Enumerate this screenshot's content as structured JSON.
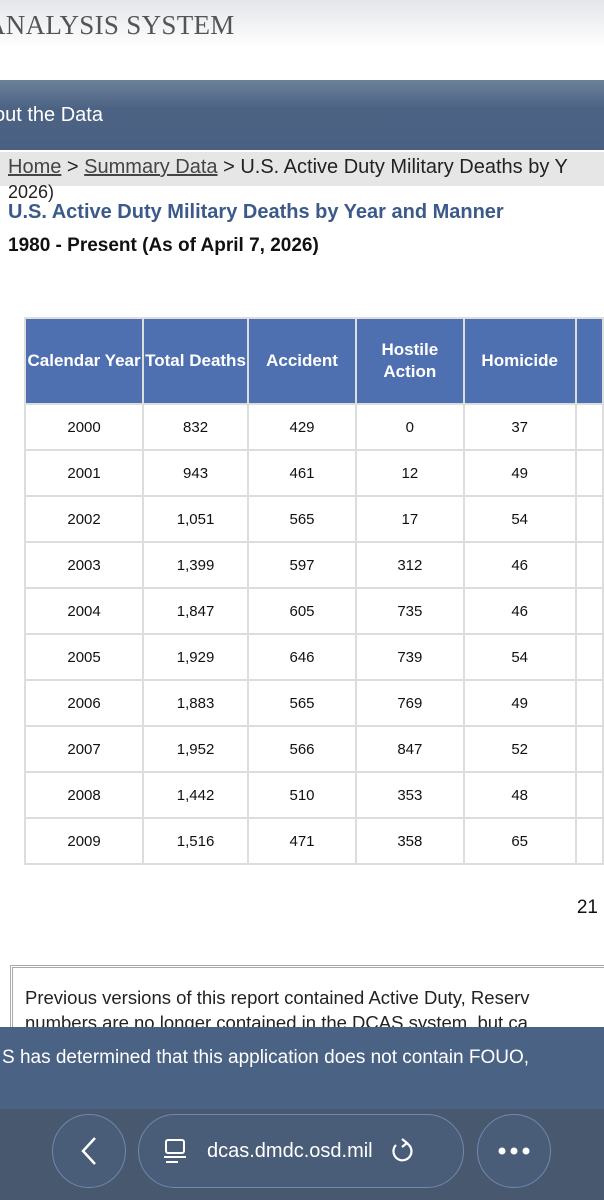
{
  "header": {
    "title": "ANALYSIS SYSTEM"
  },
  "nav": {
    "item": "out the Data"
  },
  "breadcrumb": {
    "home": "Home",
    "summary": "Summary Data",
    "current": "U.S. Active Duty Military Deaths by Y",
    "wrap": "2026)"
  },
  "page": {
    "title": "U.S. Active Duty Military Deaths by Year and Manner",
    "subtitle": "1980 - Present (As of April 7, 2026)"
  },
  "table": {
    "headers": [
      "Calendar Year",
      "Total Deaths",
      "Accident",
      "Hostile Action",
      "Homicide"
    ],
    "rows": [
      [
        "2000",
        "832",
        "429",
        "0",
        "37"
      ],
      [
        "2001",
        "943",
        "461",
        "12",
        "49"
      ],
      [
        "2002",
        "1,051",
        "565",
        "17",
        "54"
      ],
      [
        "2003",
        "1,399",
        "597",
        "312",
        "46"
      ],
      [
        "2004",
        "1,847",
        "605",
        "735",
        "46"
      ],
      [
        "2005",
        "1,929",
        "646",
        "739",
        "54"
      ],
      [
        "2006",
        "1,883",
        "565",
        "769",
        "49"
      ],
      [
        "2007",
        "1,952",
        "566",
        "847",
        "52"
      ],
      [
        "2008",
        "1,442",
        "510",
        "353",
        "48"
      ],
      [
        "2009",
        "1,516",
        "471",
        "358",
        "65"
      ]
    ]
  },
  "pagination": {
    "text": "21"
  },
  "note": {
    "line1": "Previous versions of this report contained Active Duty, Reserv",
    "line2": "numbers are no longer contained in the DCAS system, but ca"
  },
  "banner": {
    "text": "S has determined that this application does not contain FOUO,"
  },
  "browser": {
    "url": "dcas.dmdc.osd.mil",
    "back_icon": "chevron-left-icon",
    "more_icon": "ellipsis-icon",
    "reload_icon": "reload-icon",
    "site_icon": "laptop-icon"
  },
  "colors": {
    "table_header": "#4f70b0",
    "title": "#3b5a8a",
    "nav": "#4a6082"
  }
}
